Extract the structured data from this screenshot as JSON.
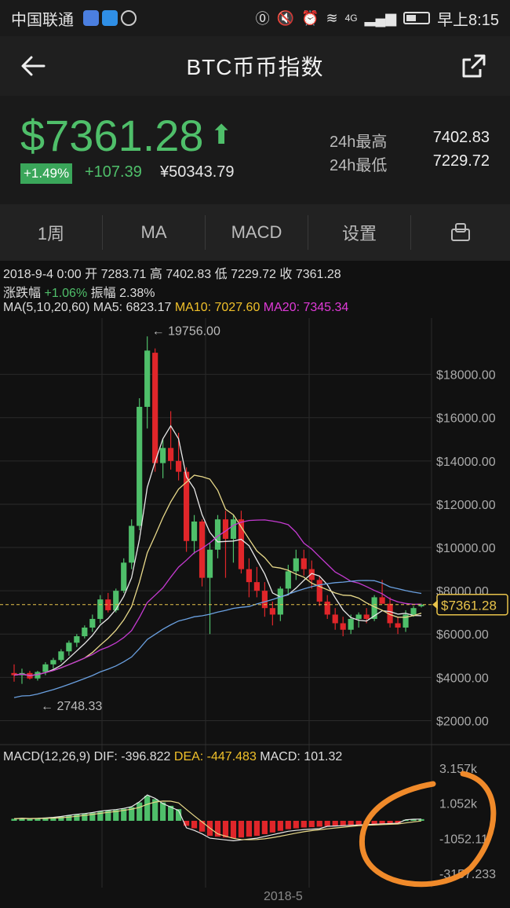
{
  "statusbar": {
    "carrier": "中国联通",
    "network": "4G",
    "time": "早上8:15"
  },
  "navbar": {
    "title": "BTC币币指数",
    "back_icon": "back-arrow-icon",
    "share_icon": "share-icon"
  },
  "ticker": {
    "price": "$7361.28",
    "change_pct": "+1.49%",
    "change_abs": "+107.39",
    "cny_price": "¥50343.79",
    "high_label": "24h最高",
    "high_value": "7402.83",
    "low_label": "24h最低",
    "low_value": "7229.72",
    "colors": {
      "up": "#4fbf6a",
      "down": "#e0262a"
    }
  },
  "tabs": [
    {
      "label": "1周"
    },
    {
      "label": "MA"
    },
    {
      "label": "MACD"
    },
    {
      "label": "设置"
    },
    {
      "label": "",
      "icon": "rotate-screen-icon"
    }
  ],
  "candle_info": {
    "date": "2018-9-4 0:00",
    "open_label": "开",
    "open": "7283.71",
    "high_label": "高",
    "high": "7402.83",
    "low_label": "低",
    "low": "7229.72",
    "close_label": "收",
    "close": "7361.28",
    "change_label": "涨跌幅",
    "change": "+1.06%",
    "amp_label": "振幅",
    "amp": "2.38%"
  },
  "ma_info": {
    "label": "MA(5,10,20,60)",
    "ma5": "MA5: 6823.17",
    "ma10": "MA10: 7027.60",
    "ma20": "MA20: 7345.34"
  },
  "macd_info": {
    "label": "MACD(12,26,9)",
    "dif": "DIF: -396.822",
    "dea": "DEA: -447.483",
    "macd": "MACD: 101.32"
  },
  "chart_data": {
    "type": "candlestick",
    "y_ticks": [
      "$18000.00",
      "$16000.00",
      "$14000.00",
      "$12000.00",
      "$10000.00",
      "$8000.00",
      "$6000.00",
      "$4000.00",
      "$2000.00"
    ],
    "current_price_label": "$7361.28",
    "max_annotation": "19756.00",
    "min_annotation": "2748.33",
    "x_label": "2018-5",
    "macd_ticks": [
      "3.157k",
      "1.052k",
      "-1052.11",
      "-3157.233"
    ],
    "candles": [
      [
        4200,
        4600,
        3800,
        4100
      ],
      [
        4100,
        4400,
        3700,
        4200
      ],
      [
        4200,
        4300,
        3900,
        3950
      ],
      [
        3950,
        4300,
        3850,
        4250
      ],
      [
        4250,
        4700,
        4100,
        4600
      ],
      [
        4600,
        4900,
        4400,
        4800
      ],
      [
        4800,
        5300,
        4700,
        5200
      ],
      [
        5200,
        5700,
        5000,
        5600
      ],
      [
        5600,
        6000,
        5400,
        5900
      ],
      [
        5900,
        6400,
        5800,
        6300
      ],
      [
        6300,
        6900,
        6100,
        6700
      ],
      [
        6700,
        7800,
        6500,
        7600
      ],
      [
        7600,
        7900,
        7000,
        7100
      ],
      [
        7100,
        8100,
        7000,
        8000
      ],
      [
        8000,
        9500,
        7900,
        9300
      ],
      [
        9300,
        11300,
        9000,
        11000
      ],
      [
        11000,
        16900,
        10800,
        16500
      ],
      [
        16500,
        19756,
        15500,
        19100
      ],
      [
        19000,
        19200,
        13500,
        13900
      ],
      [
        13900,
        15000,
        13200,
        14600
      ],
      [
        14600,
        16300,
        13600,
        14000
      ],
      [
        14000,
        15300,
        13100,
        13500
      ],
      [
        13500,
        13700,
        9800,
        10300
      ],
      [
        10300,
        11500,
        9700,
        11200
      ],
      [
        11200,
        11300,
        8200,
        8600
      ],
      [
        8600,
        10200,
        6000,
        9900
      ],
      [
        9900,
        11500,
        9500,
        11300
      ],
      [
        11300,
        11700,
        8600,
        10400
      ],
      [
        10400,
        11500,
        9300,
        11300
      ],
      [
        11300,
        11700,
        8800,
        9000
      ],
      [
        9000,
        9500,
        7700,
        8400
      ],
      [
        8400,
        9100,
        7700,
        8000
      ],
      [
        8000,
        8400,
        6800,
        7200
      ],
      [
        7200,
        7500,
        6400,
        6900
      ],
      [
        6900,
        8200,
        6600,
        8100
      ],
      [
        8100,
        9200,
        7800,
        8900
      ],
      [
        8900,
        9900,
        8500,
        9500
      ],
      [
        9500,
        9900,
        8700,
        9000
      ],
      [
        9000,
        9400,
        8100,
        8500
      ],
      [
        8500,
        8700,
        7300,
        7500
      ],
      [
        7500,
        7800,
        6700,
        6900
      ],
      [
        6900,
        7200,
        6200,
        6500
      ],
      [
        6500,
        6800,
        5900,
        6200
      ],
      [
        6200,
        6900,
        6000,
        6700
      ],
      [
        6700,
        7000,
        6300,
        6900
      ],
      [
        6900,
        7200,
        6500,
        6700
      ],
      [
        6700,
        7800,
        6600,
        7700
      ],
      [
        7700,
        8500,
        7400,
        7400
      ],
      [
        7400,
        7700,
        6300,
        6500
      ],
      [
        6500,
        6800,
        6000,
        6300
      ],
      [
        6300,
        7100,
        6100,
        6900
      ],
      [
        6900,
        7300,
        6800,
        7200
      ],
      [
        7283.71,
        7402.83,
        7229.72,
        7361.28
      ]
    ],
    "macd_hist": [
      120,
      150,
      130,
      140,
      170,
      200,
      250,
      320,
      380,
      420,
      480,
      560,
      610,
      650,
      720,
      820,
      1100,
      1500,
      1300,
      1100,
      900,
      700,
      -300,
      -450,
      -650,
      -900,
      -950,
      -1000,
      -1050,
      -1000,
      -950,
      -900,
      -800,
      -700,
      -600,
      -500,
      -450,
      -400,
      -380,
      -350,
      -320,
      -300,
      -280,
      -260,
      -240,
      -220,
      -200,
      -180,
      -160,
      -140,
      60,
      90,
      101.32
    ]
  }
}
